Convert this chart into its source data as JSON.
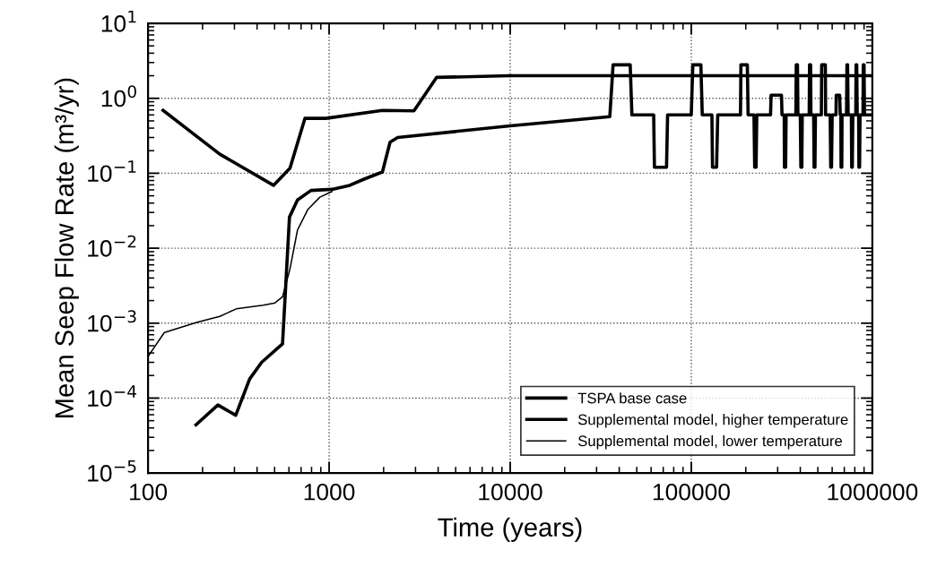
{
  "chart_data": {
    "type": "line",
    "xlabel": "Time (years)",
    "ylabel": "Mean Seep Flow Rate (m³/yr)",
    "log": "xy",
    "grid": true,
    "legend": "bottom right",
    "line_style": "solid",
    "marker": "none",
    "xlim": [
      100,
      1000000
    ],
    "xticks": [
      100,
      1000,
      10000,
      100000,
      1000000
    ],
    "ylim": [
      1e-05,
      10
    ],
    "yticks": [
      {
        "value": 1e-05,
        "label": "10$^{−5}$"
      },
      {
        "value": 0.0001,
        "label": "10$^{−4}$"
      },
      {
        "value": 0.001,
        "label": "10$^{−3}$"
      },
      {
        "value": 0.01,
        "label": "10$^{−2}$"
      },
      {
        "value": 0.1,
        "label": "10$^{−1}$"
      },
      {
        "value": 1,
        "label": "10$^{0}$"
      },
      {
        "value": 10,
        "label": "10$^{1}$"
      }
    ],
    "series": [
      {
        "name": "TSPA base case",
        "color": "#000000",
        "x": [
          121,
          249,
          493,
          608,
          735,
          960,
          1970,
          2940,
          3920,
          10000,
          1000000
        ],
        "values": [
          0.69,
          0.18,
          0.069,
          0.117,
          0.54,
          0.54,
          0.69,
          0.68,
          1.9,
          2.0,
          2.0
        ]
      },
      {
        "name": "Supplemental model, higher temperature",
        "color": "#000000",
        "x": [
          184,
          243,
          305,
          364,
          424,
          553,
          604,
          669,
          794,
          1036,
          1300,
          1570,
          1970,
          2170,
          2390,
          10000,
          35500,
          37000,
          46000,
          47000,
          62000,
          62600,
          73000,
          74000,
          100000,
          102000,
          113000,
          115000,
          130000,
          131000,
          138000,
          140000,
          187000,
          188000,
          204000,
          206000,
          222000,
          224000,
          228000,
          230000,
          274000,
          276000,
          315000,
          317000,
          326000,
          327000,
          332000,
          334000,
          378000,
          380000,
          386000,
          388000,
          400000,
          403000,
          408000,
          410000,
          448000,
          450000,
          456000,
          458000,
          474000,
          477000,
          482000,
          485000,
          523000,
          525000,
          550000,
          552000,
          585000,
          589000,
          595000,
          600000,
          630000,
          632000,
          660000,
          665000,
          670000,
          672000,
          678000,
          680000,
          720000,
          724000,
          730000,
          735000,
          766000,
          769000,
          775000,
          780000,
          810000,
          813000,
          820000,
          825000,
          840000,
          843000,
          850000,
          855000,
          888000,
          891000,
          900000,
          905000,
          1000000
        ],
        "values": [
          4.4e-05,
          8.1e-05,
          5.9e-05,
          0.00018,
          0.0003,
          0.00053,
          0.026,
          0.044,
          0.059,
          0.061,
          0.069,
          0.084,
          0.104,
          0.26,
          0.3,
          0.43,
          0.57,
          2.8,
          2.8,
          0.6,
          0.6,
          0.12,
          0.12,
          0.6,
          0.6,
          2.8,
          2.8,
          0.6,
          0.6,
          0.12,
          0.12,
          0.6,
          0.6,
          2.8,
          2.8,
          0.6,
          0.6,
          0.12,
          0.12,
          0.6,
          0.6,
          1.1,
          1.1,
          0.6,
          0.6,
          0.12,
          0.12,
          0.6,
          0.6,
          2.8,
          2.8,
          0.6,
          0.6,
          0.12,
          0.12,
          0.6,
          0.6,
          2.8,
          2.8,
          0.6,
          0.6,
          0.12,
          0.12,
          0.6,
          0.6,
          2.8,
          2.8,
          0.6,
          0.6,
          0.12,
          0.12,
          0.6,
          0.6,
          1.1,
          1.1,
          0.6,
          0.6,
          0.12,
          0.12,
          0.6,
          0.6,
          2.8,
          2.8,
          0.6,
          0.6,
          0.12,
          0.12,
          0.6,
          0.6,
          2.8,
          2.8,
          0.6,
          0.6,
          0.12,
          0.12,
          0.6,
          0.6,
          2.8,
          2.8,
          0.6,
          0.6
        ]
      },
      {
        "name": "Supplemental model, lower temperature",
        "color": "#000000",
        "x": [
          100,
          123,
          187,
          249,
          307,
          432,
          502,
          553,
          608,
          669,
          764,
          889,
          1036
        ],
        "values": [
          0.00036,
          0.00075,
          0.00103,
          0.00123,
          0.00155,
          0.00173,
          0.00186,
          0.00224,
          0.0053,
          0.0175,
          0.033,
          0.048,
          0.057
        ]
      }
    ]
  }
}
